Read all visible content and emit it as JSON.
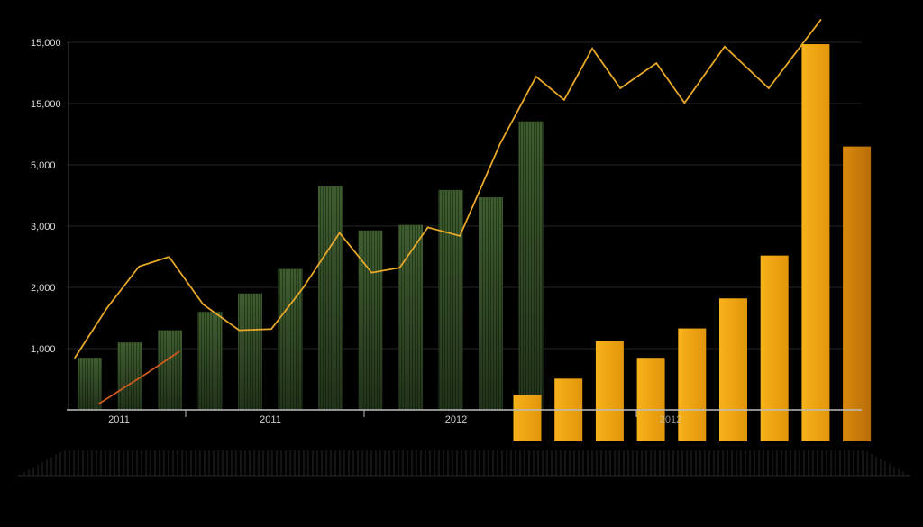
{
  "chart_data": {
    "type": "bar",
    "title": "",
    "xlabel": "",
    "ylabel": "",
    "grid": true,
    "legend": "none",
    "ylim": [
      0,
      7
    ],
    "y_ticks": [
      {
        "label": "15,000",
        "level": 6
      },
      {
        "label": "15,000",
        "level": 5
      },
      {
        "label": "5,000",
        "level": 4
      },
      {
        "label": "3,000",
        "level": 3
      },
      {
        "label": "2,000",
        "level": 2
      },
      {
        "label": "1,000",
        "level": 1
      }
    ],
    "x_ticks": [
      "2011",
      "2011",
      "2012",
      "2012"
    ],
    "categories": [
      "1",
      "2",
      "3",
      "4",
      "5",
      "6",
      "7",
      "8",
      "9",
      "10",
      "11",
      "12",
      "13",
      "14",
      "15",
      "16",
      "17",
      "18",
      "19",
      "20"
    ],
    "series": [
      {
        "name": "green bars",
        "color": "#3c5a2c",
        "points": [
          {
            "x": 1,
            "value": 0.85
          },
          {
            "x": 2,
            "value": 1.1
          },
          {
            "x": 3,
            "value": 1.3
          },
          {
            "x": 4,
            "value": 1.6
          },
          {
            "x": 5,
            "value": 1.9
          },
          {
            "x": 6,
            "value": 2.3
          },
          {
            "x": 7,
            "value": 3.65
          },
          {
            "x": 8,
            "value": 2.93
          },
          {
            "x": 9,
            "value": 3.02
          },
          {
            "x": 10,
            "value": 3.59
          },
          {
            "x": 11,
            "value": 3.47
          },
          {
            "x": 12,
            "value": 4.71
          }
        ]
      },
      {
        "name": "orange bars",
        "color": "#f4a40e",
        "points": [
          {
            "x": 12,
            "value": 0.25
          },
          {
            "x": 13,
            "value": 0.51
          },
          {
            "x": 14,
            "value": 1.12
          },
          {
            "x": 15,
            "value": 0.85
          },
          {
            "x": 16,
            "value": 1.33
          },
          {
            "x": 17,
            "value": 1.82
          },
          {
            "x": 18,
            "value": 2.52
          },
          {
            "x": 19,
            "value": 5.97
          },
          {
            "x": 20,
            "value": 4.3
          }
        ]
      },
      {
        "name": "orange line",
        "type": "line",
        "color": "#e8a82a",
        "x": [
          0,
          0.8,
          1.6,
          2.35,
          3.2,
          4.1,
          4.9,
          5.7,
          6.6,
          7.4,
          8.1,
          8.8,
          9.6,
          10.6,
          11.5,
          12.2,
          12.9,
          13.6,
          14.5,
          15.2,
          16.2,
          17.3,
          18.6
        ],
        "values": [
          0.85,
          1.66,
          2.34,
          2.5,
          1.72,
          1.3,
          1.32,
          2.0,
          2.89,
          2.24,
          2.32,
          2.98,
          2.84,
          4.34,
          5.44,
          5.06,
          5.9,
          5.25,
          5.66,
          5.01,
          5.93,
          5.25,
          6.37
        ]
      },
      {
        "name": "red line",
        "type": "line",
        "color": "#cc5a1e",
        "x": [
          0.6,
          1.8,
          2.6
        ],
        "values": [
          0.1,
          0.6,
          0.95
        ]
      }
    ]
  }
}
